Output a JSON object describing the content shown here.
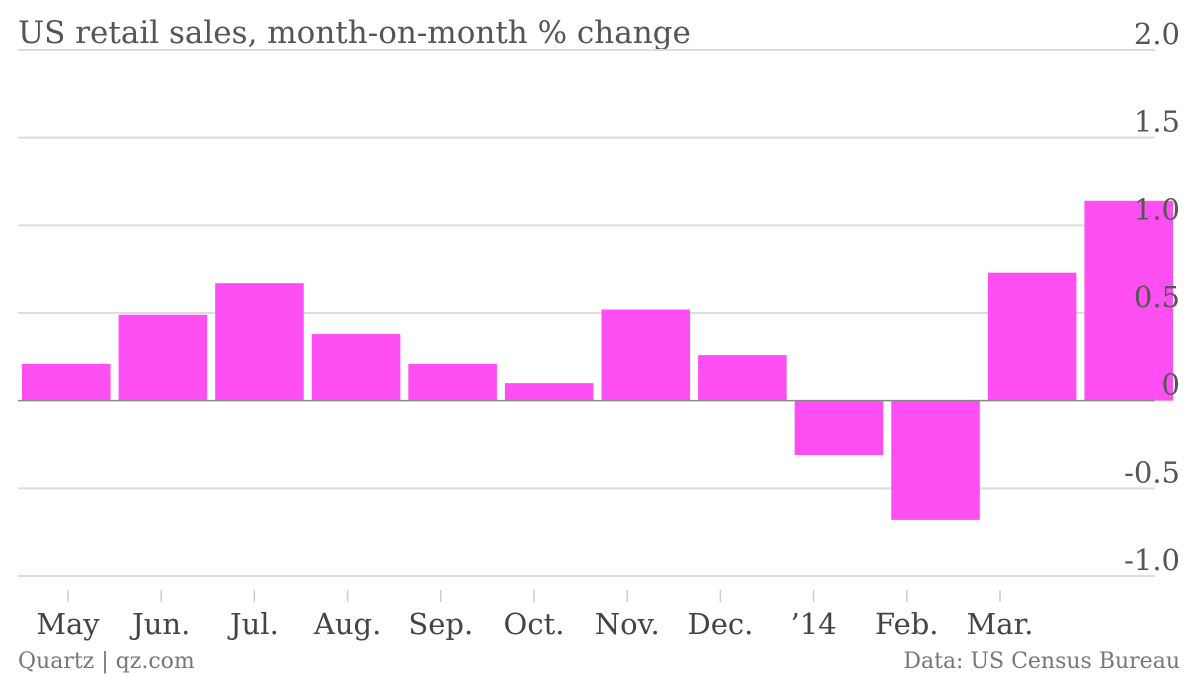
{
  "chart_data": {
    "type": "bar",
    "title": "US retail sales, month-on-month % change",
    "categories": [
      "May",
      "Jun.",
      "Jul.",
      "Aug.",
      "Sep.",
      "Oct.",
      "Nov.",
      "Dec.",
      "’14",
      "Feb.",
      "Mar.",
      ""
    ],
    "values": [
      0.21,
      0.49,
      0.67,
      0.38,
      0.21,
      0.1,
      0.52,
      0.26,
      -0.31,
      -0.68,
      0.73,
      1.14
    ],
    "ylim": [
      -1.0,
      2.0
    ],
    "yticks": [
      2.0,
      1.5,
      1.0,
      0.5,
      0,
      -0.5,
      -1.0
    ],
    "ytick_labels": [
      "2.0",
      "1.5",
      "1.0",
      "0.5",
      "0",
      "-0.5",
      "-1.0"
    ],
    "grid": true,
    "colors": {
      "bar": "#ff4ff2",
      "grid": "#dddddd",
      "text": "#555555"
    }
  },
  "footer": {
    "source_left": "Quartz | qz.com",
    "source_right": "Data: US Census Bureau"
  }
}
